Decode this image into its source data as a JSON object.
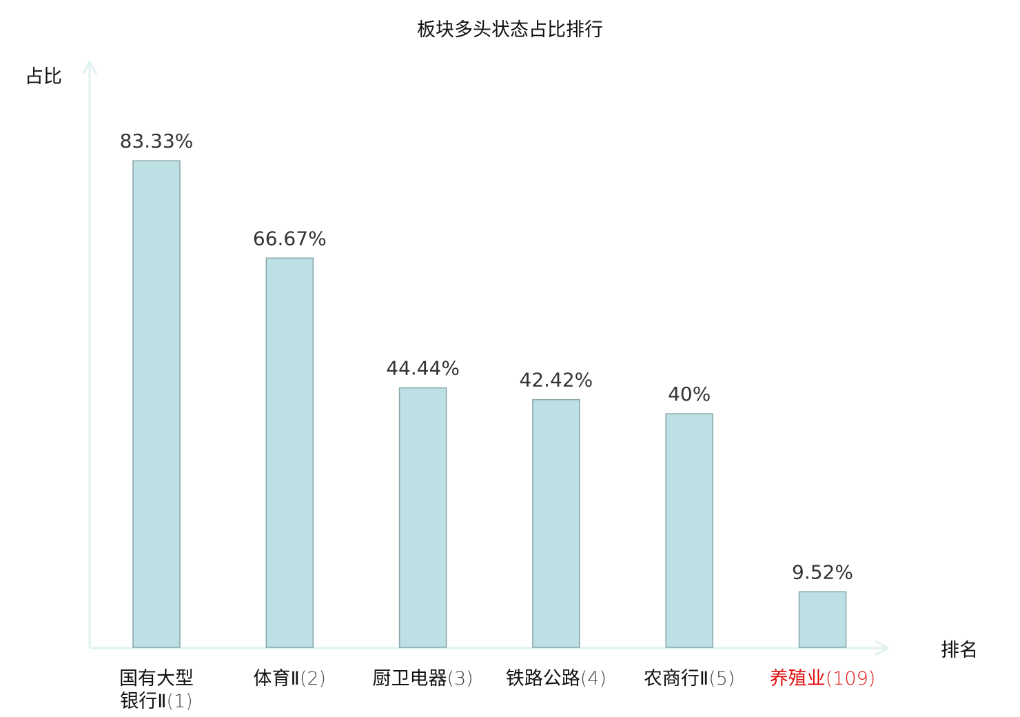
{
  "chart_data": {
    "type": "bar",
    "title": "板块多头状态占比排行",
    "xlabel": "排名",
    "ylabel": "占比",
    "ylim": [
      0,
      100
    ],
    "grid": false,
    "categories": [
      {
        "name_lines": [
          "国有大型",
          "银行Ⅱ"
        ],
        "rank": "(1)",
        "highlight": false
      },
      {
        "name_lines": [
          "体育Ⅱ"
        ],
        "rank": "(2)",
        "highlight": false
      },
      {
        "name_lines": [
          "厨卫电器"
        ],
        "rank": "(3)",
        "highlight": false
      },
      {
        "name_lines": [
          "铁路公路"
        ],
        "rank": "(4)",
        "highlight": false
      },
      {
        "name_lines": [
          "农商行Ⅱ"
        ],
        "rank": "(5)",
        "highlight": false
      },
      {
        "name_lines": [
          "养殖业"
        ],
        "rank": "(109)",
        "highlight": true
      }
    ],
    "values": [
      83.33,
      66.67,
      44.44,
      42.42,
      40,
      9.52
    ],
    "value_labels": [
      "83.33%",
      "66.67%",
      "44.44%",
      "42.42%",
      "40%",
      "9.52%"
    ]
  },
  "colors": {
    "bar_fill": "#bce0e3",
    "bar_stroke": "#86a6a8",
    "axis": "#dff2f0",
    "label": "#333333",
    "highlight": "#e01010"
  }
}
